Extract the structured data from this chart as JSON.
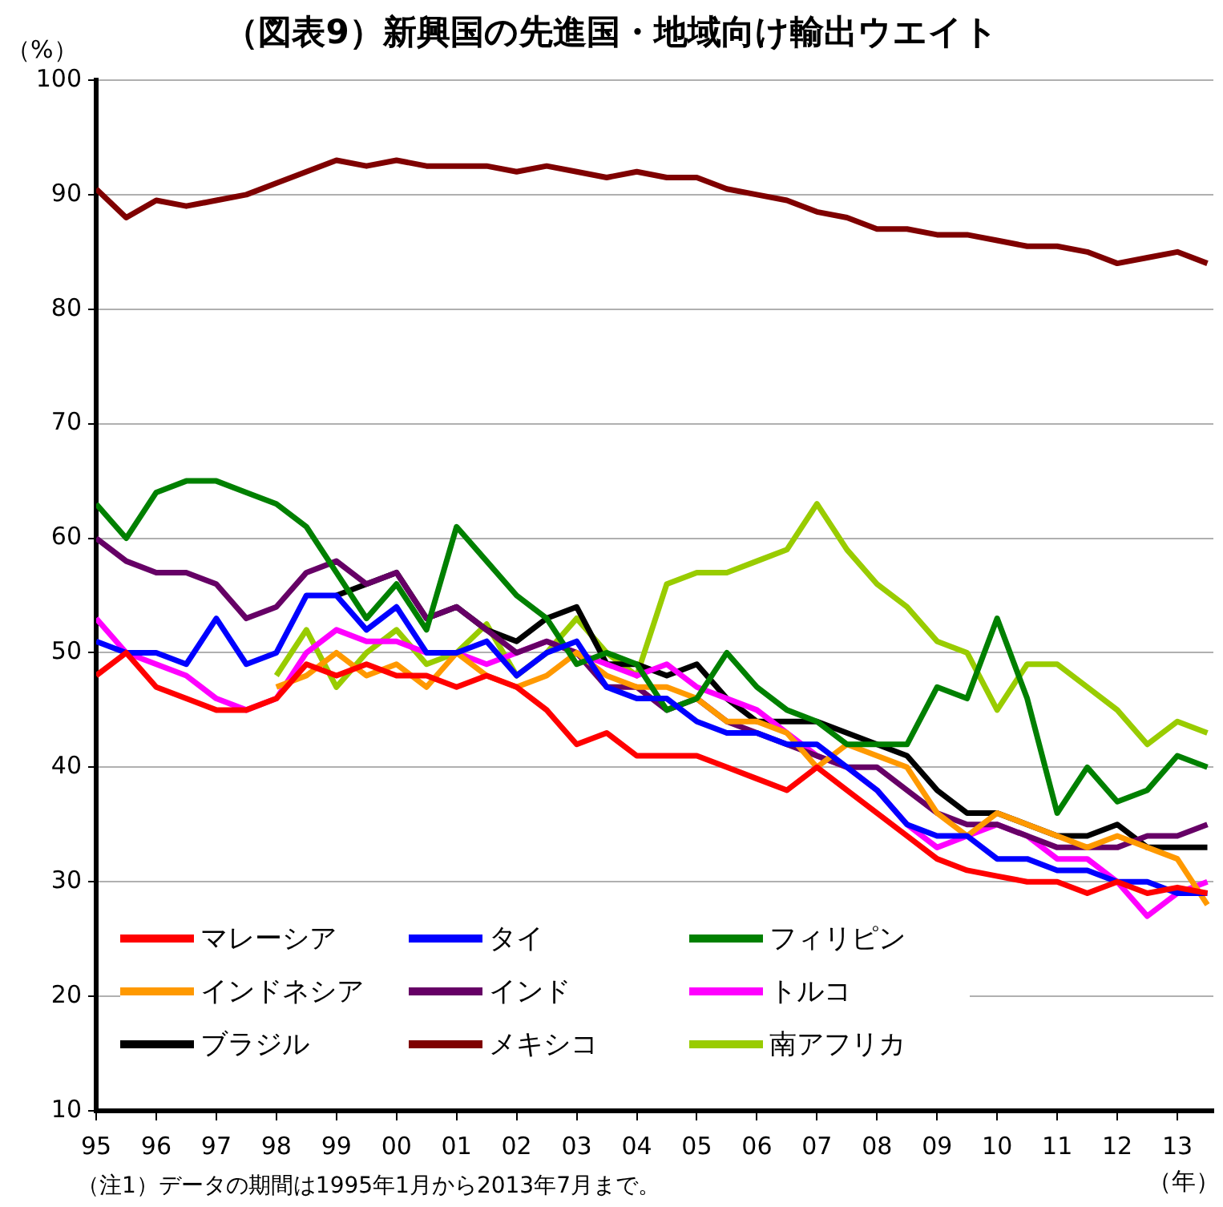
{
  "chart_data": {
    "type": "line",
    "title": "（図表9）新興国の先進国・地域向け輸出ウエイト",
    "ylabel": "（%）",
    "xlabel": "（年）",
    "annotations": [
      "（注1）データの期間は1995年1月から2013年7月まで。"
    ],
    "x": [
      1995,
      1995.5,
      1996,
      1996.5,
      1997,
      1997.5,
      1998,
      1998.5,
      1999,
      1999.5,
      2000,
      2000.5,
      2001,
      2001.5,
      2002,
      2002.5,
      2003,
      2003.5,
      2004,
      2004.5,
      2005,
      2005.5,
      2006,
      2006.5,
      2007,
      2007.5,
      2008,
      2008.5,
      2009,
      2009.5,
      2010,
      2010.5,
      2011,
      2011.5,
      2012,
      2012.5,
      2013,
      2013.5
    ],
    "xlim": [
      1995,
      2013.6
    ],
    "xticks": [
      {
        "value": 1995,
        "label": "95"
      },
      {
        "value": 1996,
        "label": "96"
      },
      {
        "value": 1997,
        "label": "97"
      },
      {
        "value": 1998,
        "label": "98"
      },
      {
        "value": 1999,
        "label": "99"
      },
      {
        "value": 2000,
        "label": "00"
      },
      {
        "value": 2001,
        "label": "01"
      },
      {
        "value": 2002,
        "label": "02"
      },
      {
        "value": 2003,
        "label": "03"
      },
      {
        "value": 2004,
        "label": "04"
      },
      {
        "value": 2005,
        "label": "05"
      },
      {
        "value": 2006,
        "label": "06"
      },
      {
        "value": 2007,
        "label": "07"
      },
      {
        "value": 2008,
        "label": "08"
      },
      {
        "value": 2009,
        "label": "09"
      },
      {
        "value": 2010,
        "label": "10"
      },
      {
        "value": 2011,
        "label": "11"
      },
      {
        "value": 2012,
        "label": "12"
      },
      {
        "value": 2013,
        "label": "13"
      }
    ],
    "ylim": [
      10,
      100
    ],
    "yticks": [
      10,
      20,
      30,
      40,
      50,
      60,
      70,
      80,
      90,
      100
    ],
    "grid": "y",
    "legend": "bottom left",
    "marker": "none",
    "line_style": "solid",
    "series": [
      {
        "name": "マレーシア",
        "color": "#ff0000",
        "values": [
          48,
          50,
          47,
          46,
          45,
          45,
          46,
          49,
          48,
          49,
          48,
          48,
          47,
          48,
          47,
          45,
          42,
          43,
          41,
          41,
          41,
          40,
          39,
          38,
          40,
          38,
          36,
          34,
          32,
          31,
          30.5,
          30,
          30,
          29,
          30,
          29,
          29.5,
          29
        ]
      },
      {
        "name": "タイ",
        "color": "#0000ff",
        "values": [
          51,
          50,
          50,
          49,
          53,
          49,
          50,
          55,
          55,
          52,
          54,
          50,
          50,
          51,
          48,
          50,
          51,
          47,
          46,
          46,
          44,
          43,
          43,
          42,
          42,
          40,
          38,
          35,
          34,
          34,
          32,
          32,
          31,
          31,
          30,
          30,
          29,
          29
        ]
      },
      {
        "name": "フィリピン",
        "color": "#008000",
        "values": [
          63,
          60,
          64,
          65,
          65,
          64,
          63,
          61,
          57,
          53,
          56,
          52,
          61,
          58,
          55,
          53,
          49,
          50,
          49,
          45,
          46,
          50,
          47,
          45,
          44,
          42,
          42,
          42,
          47,
          46,
          53,
          46,
          36,
          40,
          37,
          38,
          41,
          40
        ]
      },
      {
        "name": "インドネシア",
        "color": "#ff9900",
        "values": [
          null,
          null,
          null,
          null,
          null,
          null,
          47,
          48,
          50,
          48,
          49,
          47,
          50,
          48,
          47,
          48,
          50,
          48,
          47,
          47,
          46,
          44,
          44,
          43,
          40,
          42,
          41,
          40,
          36,
          34,
          36,
          35,
          34,
          33,
          34,
          33,
          32,
          28
        ]
      },
      {
        "name": "インド",
        "color": "#660066",
        "values": [
          60,
          58,
          57,
          57,
          56,
          53,
          54,
          57,
          58,
          56,
          57,
          53,
          54,
          52,
          50,
          51,
          50,
          47,
          47,
          45,
          46,
          44,
          43,
          42,
          41,
          40,
          40,
          38,
          36,
          35,
          35,
          34,
          33,
          33,
          33,
          34,
          34,
          35
        ]
      },
      {
        "name": "トルコ",
        "color": "#ff00ff",
        "values": [
          53,
          50,
          49,
          48,
          46,
          45,
          46,
          50,
          52,
          51,
          51,
          50,
          50,
          49,
          50,
          51,
          50,
          49,
          48,
          49,
          47,
          46,
          45,
          43,
          41,
          40,
          38,
          35,
          33,
          34,
          35,
          34,
          32,
          32,
          30,
          27,
          29,
          30
        ]
      },
      {
        "name": "ブラジル",
        "color": "#000000",
        "values": [
          null,
          null,
          null,
          null,
          null,
          null,
          null,
          null,
          55,
          56,
          57,
          53,
          54,
          52,
          51,
          53,
          54,
          49,
          49,
          48,
          49,
          46,
          44,
          44,
          44,
          43,
          42,
          41,
          38,
          36,
          36,
          35,
          34,
          34,
          35,
          33,
          33,
          33
        ]
      },
      {
        "name": "メキシコ",
        "color": "#7f0000",
        "values": [
          90.5,
          88,
          89.5,
          89,
          89.5,
          90,
          91,
          92,
          93,
          92.5,
          93,
          92.5,
          92.5,
          92.5,
          92,
          92.5,
          92,
          91.5,
          92,
          91.5,
          91.5,
          90.5,
          90,
          89.5,
          88.5,
          88,
          87,
          87,
          86.5,
          86.5,
          86,
          85.5,
          85.5,
          85,
          84,
          84.5,
          85,
          84
        ]
      },
      {
        "name": "南アフリカ",
        "color": "#99cc00",
        "values": [
          null,
          null,
          null,
          null,
          null,
          null,
          48,
          52,
          47,
          50,
          52,
          49,
          50,
          52.5,
          48,
          50,
          53,
          50,
          48,
          56,
          57,
          57,
          58,
          59,
          63,
          59,
          56,
          54,
          51,
          50,
          45,
          49,
          49,
          47,
          45,
          42,
          44,
          43
        ]
      }
    ]
  }
}
